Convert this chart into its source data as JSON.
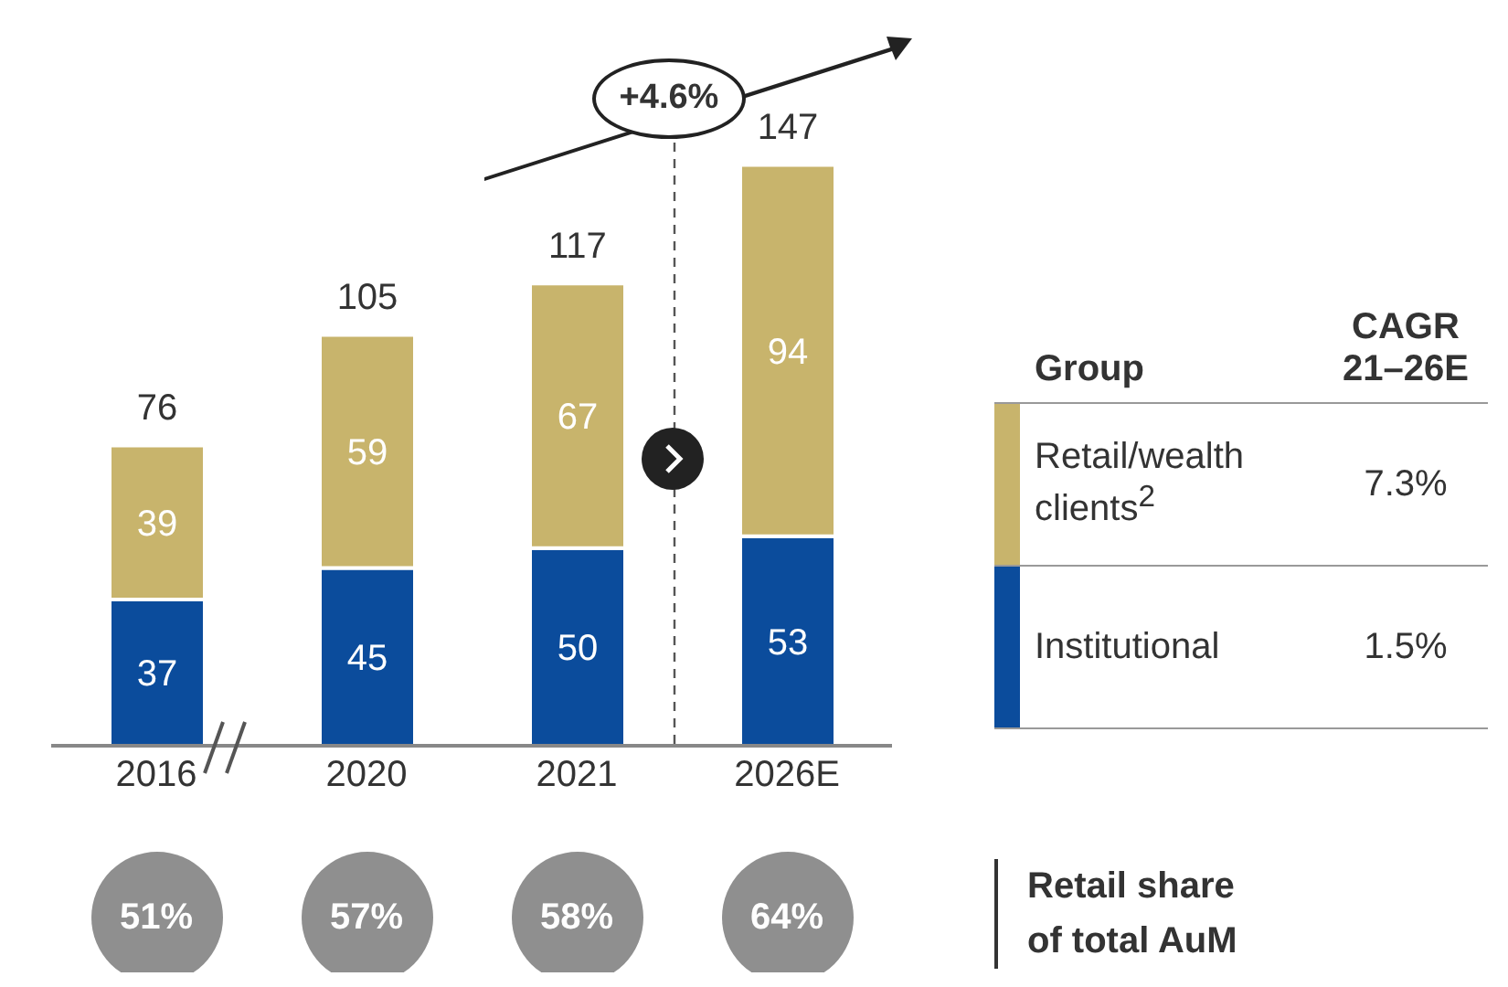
{
  "chart_data": {
    "type": "bar",
    "stacked": true,
    "data_labels": true,
    "legend": "right",
    "categories": [
      "2016",
      "2020",
      "2021",
      "2026E"
    ],
    "series": [
      {
        "name": "Institutional",
        "color": "#0b4c9c",
        "values": [
          37,
          45,
          50,
          53
        ]
      },
      {
        "name": "Retail/wealth clients$^{2}$",
        "color": "#c8b46c",
        "values": [
          39,
          59,
          67,
          94
        ]
      }
    ],
    "totals": [
      "76",
      "105",
      "117",
      "147"
    ],
    "annotations": [
      "+4.6%",
      "Group",
      "CAGR 21–26E",
      "1.5%",
      "7.3%",
      "Retail share of total AuM",
      "51%",
      "57%",
      "58%",
      "64%"
    ]
  }
}
